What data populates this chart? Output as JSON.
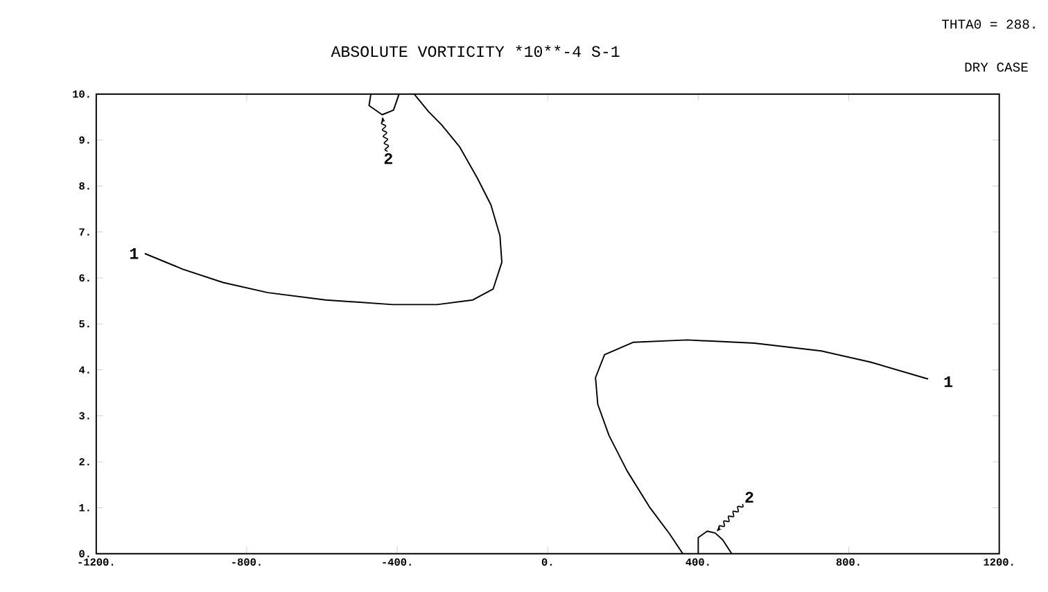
{
  "chart_data": {
    "type": "line",
    "title": "ABSOLUTE VORTICITY *10**-4 S-1",
    "xlim": [
      -1200,
      1200
    ],
    "ylim": [
      0,
      10
    ],
    "xticks": [
      {
        "value": -1200,
        "label": "-1200."
      },
      {
        "value": -800,
        "label": "-800."
      },
      {
        "value": -400,
        "label": "-400."
      },
      {
        "value": 0,
        "label": "0."
      },
      {
        "value": 400,
        "label": "400."
      },
      {
        "value": 800,
        "label": "800."
      },
      {
        "value": 1200,
        "label": "1200."
      }
    ],
    "yticks": [
      {
        "value": 0,
        "label": "0."
      },
      {
        "value": 1,
        "label": "1."
      },
      {
        "value": 2,
        "label": "2."
      },
      {
        "value": 3,
        "label": "3."
      },
      {
        "value": 4,
        "label": "4."
      },
      {
        "value": 5,
        "label": "5."
      },
      {
        "value": 6,
        "label": "6."
      },
      {
        "value": 7,
        "label": "7."
      },
      {
        "value": 8,
        "label": "8."
      },
      {
        "value": 9,
        "label": "9."
      },
      {
        "value": 10,
        "label": "10."
      }
    ],
    "series": [
      {
        "name": "1",
        "color": "#000000",
        "x": [
          -1071,
          -970,
          -863,
          -744,
          -590,
          -412,
          -294,
          -199,
          -145,
          -122,
          -127,
          -151,
          -187,
          -234,
          -282,
          -317,
          -355
        ],
        "values": [
          6.53,
          6.19,
          5.9,
          5.68,
          5.52,
          5.42,
          5.42,
          5.52,
          5.76,
          6.34,
          6.92,
          7.59,
          8.17,
          8.85,
          9.33,
          9.62,
          10
        ]
      },
      {
        "name": "2",
        "color": "#000000",
        "x": [
          -470,
          -475,
          -440,
          -410,
          -395
        ],
        "values": [
          10,
          9.75,
          9.55,
          9.65,
          10
        ]
      },
      {
        "name": "1",
        "color": "#000000",
        "x": [
          1011,
          857,
          727,
          549,
          371,
          228,
          151,
          127,
          133,
          163,
          211,
          270,
          323,
          359
        ],
        "values": [
          3.8,
          4.17,
          4.41,
          4.58,
          4.65,
          4.6,
          4.33,
          3.83,
          3.25,
          2.57,
          1.8,
          1.02,
          0.44,
          0
        ]
      },
      {
        "name": "2",
        "color": "#000000",
        "x": [
          400,
          400,
          424,
          445,
          465,
          489
        ],
        "values": [
          0,
          0.35,
          0.49,
          0.45,
          0.3,
          0
        ]
      }
    ],
    "annotations": [
      "THTA0 = 288.",
      "DRY CASE"
    ]
  }
}
